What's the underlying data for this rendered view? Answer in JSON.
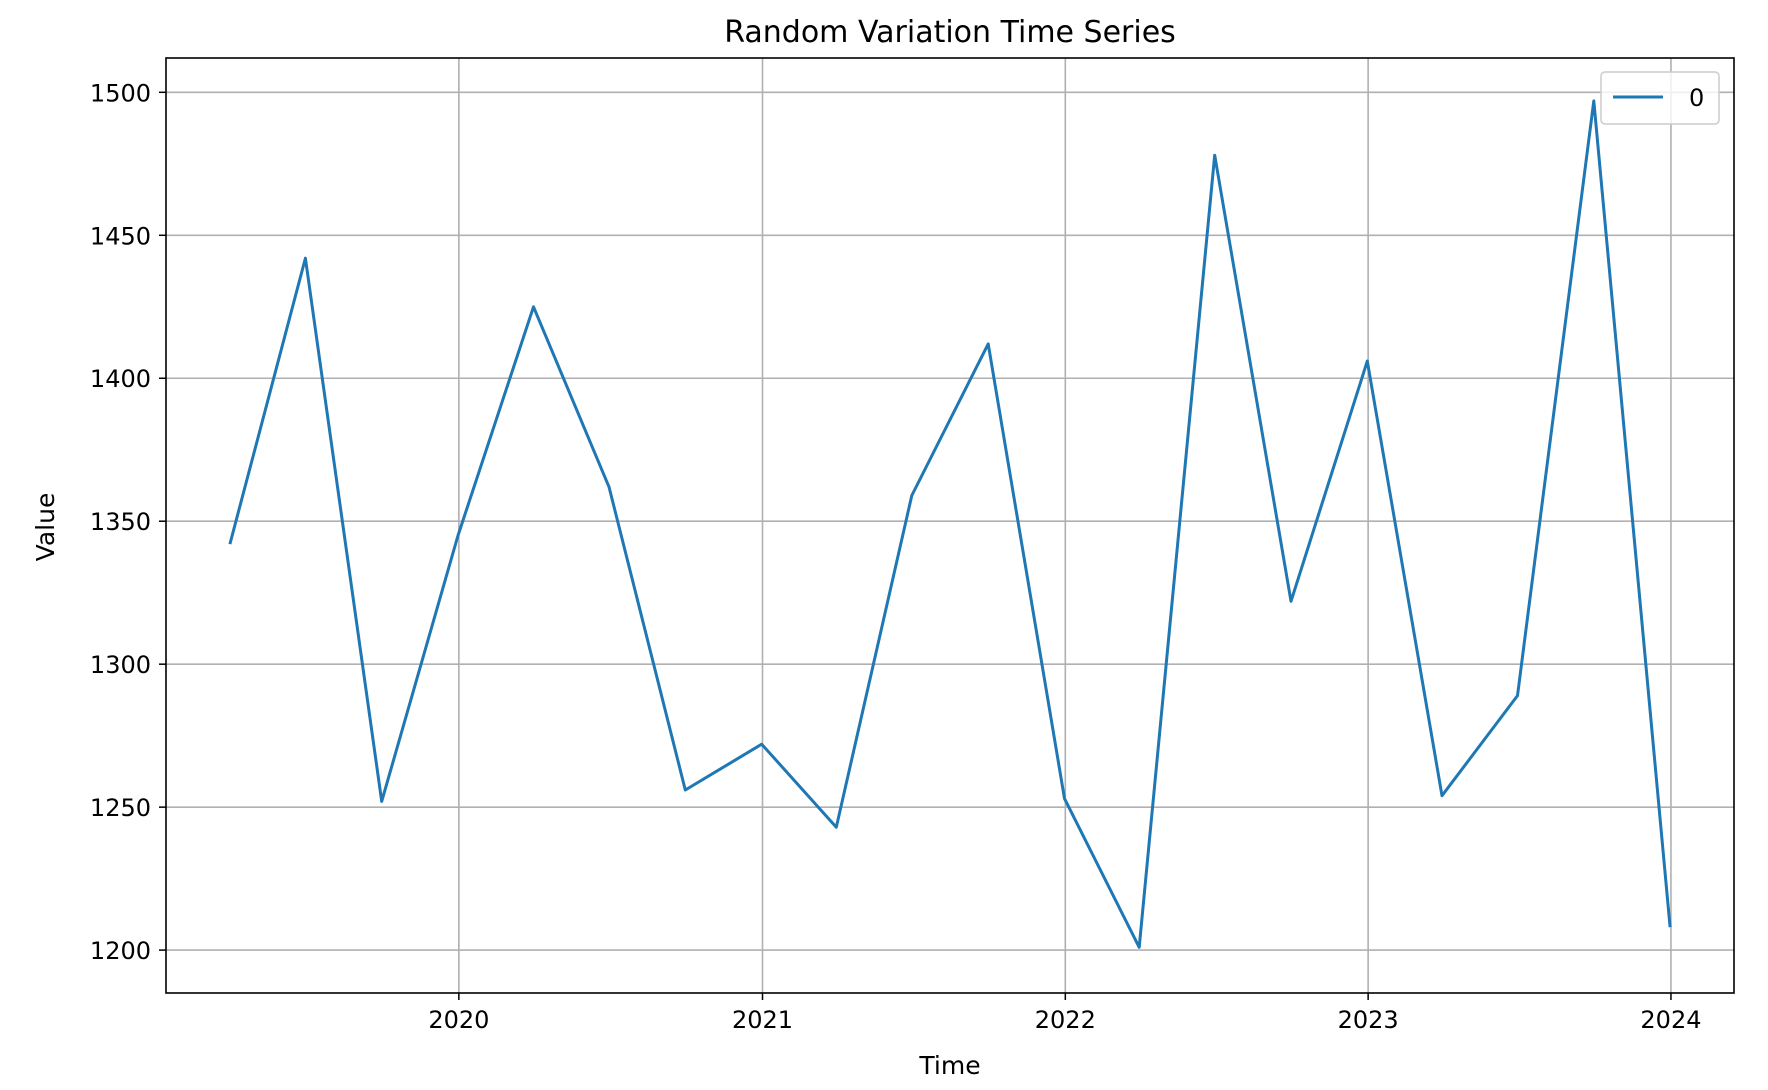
{
  "chart_data": {
    "type": "line",
    "title": "Random Variation Time Series",
    "xlabel": "Time",
    "ylabel": "Value",
    "x": [
      "2019-03-31",
      "2019-06-30",
      "2019-09-30",
      "2019-12-31",
      "2020-03-31",
      "2020-06-30",
      "2020-09-30",
      "2020-12-31",
      "2021-03-31",
      "2021-06-30",
      "2021-09-30",
      "2021-12-31",
      "2022-03-31",
      "2022-06-30",
      "2022-09-30",
      "2022-12-31",
      "2023-03-31",
      "2023-06-30",
      "2023-09-30",
      "2023-12-31"
    ],
    "series": [
      {
        "name": "0",
        "color": "#1f77b4",
        "values": [
          1342,
          1442,
          1252,
          1345,
          1425,
          1362,
          1256,
          1272,
          1243,
          1359,
          1412,
          1253,
          1201,
          1478,
          1322,
          1406,
          1254,
          1289,
          1497,
          1208
        ]
      }
    ],
    "xticks": [
      "2020",
      "2021",
      "2022",
      "2023",
      "2024"
    ],
    "yticks": [
      1200,
      1250,
      1300,
      1350,
      1400,
      1450,
      1500
    ],
    "xlim": [
      "2019-01-13",
      "2024-03-17"
    ],
    "ylim": [
      1185,
      1512
    ],
    "grid": true,
    "legend_position": "top-right"
  }
}
